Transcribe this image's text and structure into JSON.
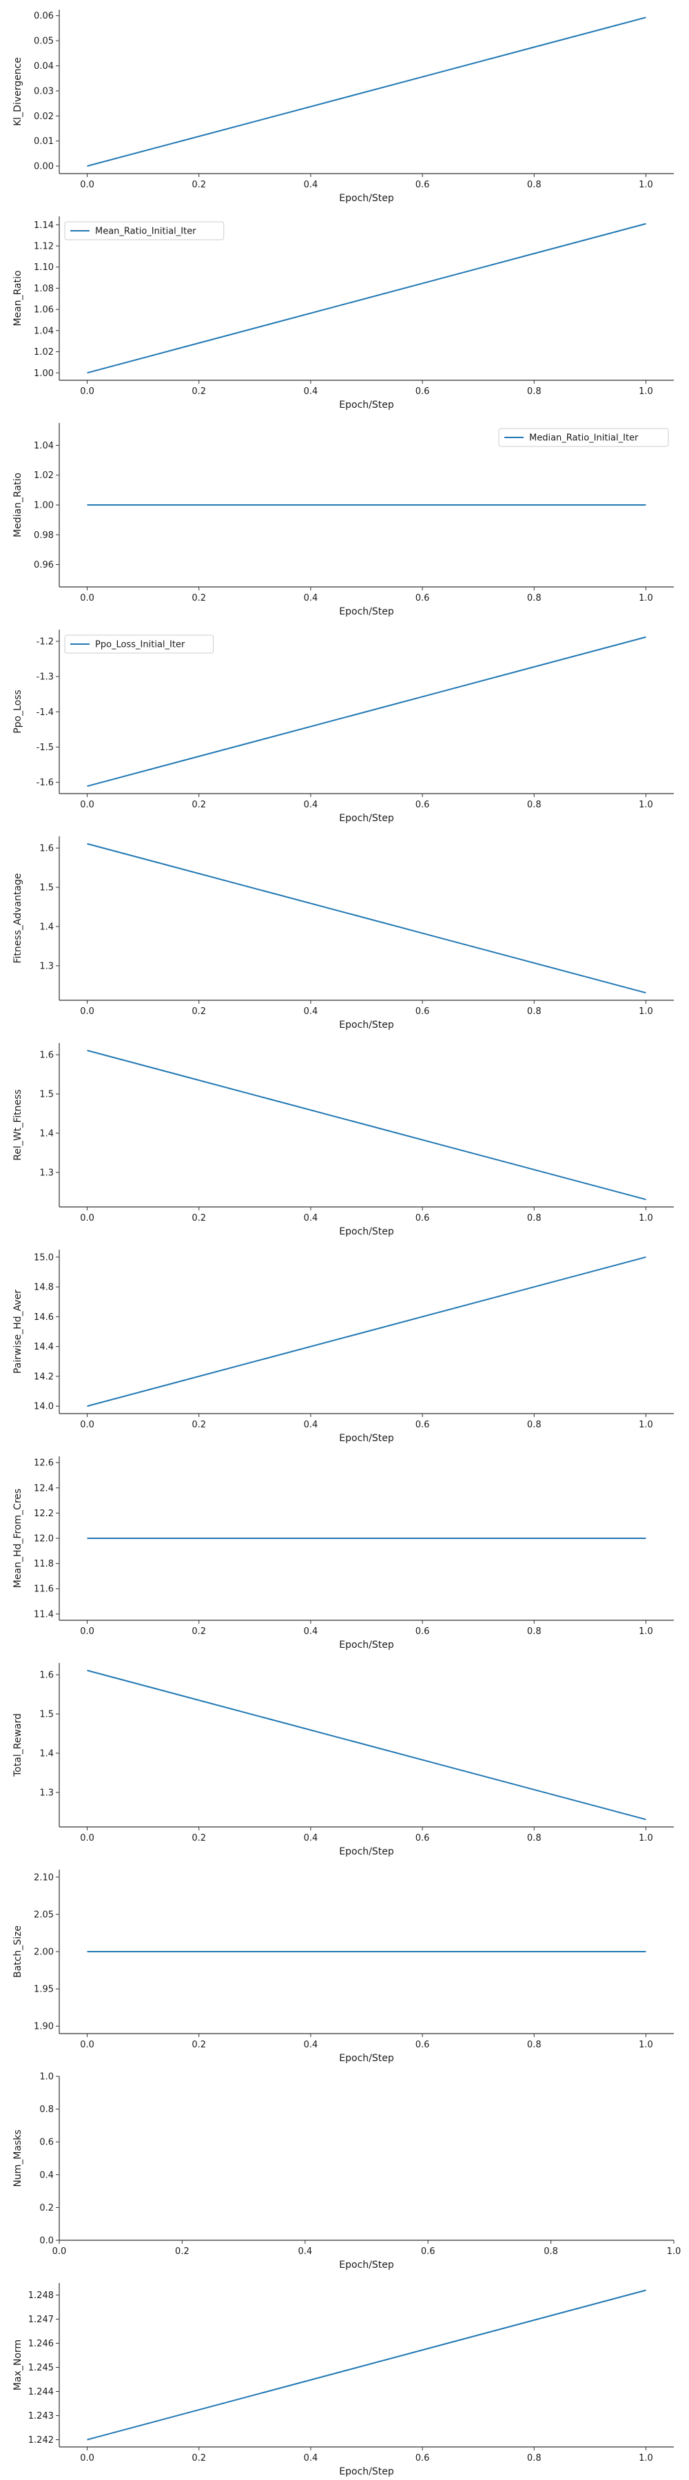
{
  "chart_data": [
    {
      "type": "line",
      "xlabel": "Epoch/Step",
      "ylabel": "Kl_Divergence",
      "x": [
        0,
        1
      ],
      "series": [
        {
          "values": [
            0.0,
            0.0593
          ]
        }
      ],
      "xlim": [
        -0.05,
        1.05
      ],
      "ylim": [
        -0.003,
        0.0624
      ],
      "xticks": [
        "0.0",
        "0.2",
        "0.4",
        "0.6",
        "0.8",
        "1.0"
      ],
      "yticks": [
        "0.00",
        "0.01",
        "0.02",
        "0.03",
        "0.04",
        "0.05",
        "0.06"
      ],
      "legend": null
    },
    {
      "type": "line",
      "xlabel": "Epoch/Step",
      "ylabel": "Mean_Ratio",
      "x": [
        0,
        1
      ],
      "series": [
        {
          "name": "Mean_Ratio_Initial_Iter",
          "values": [
            1.0,
            1.141
          ]
        }
      ],
      "xlim": [
        -0.05,
        1.05
      ],
      "ylim": [
        0.993,
        1.148
      ],
      "xticks": [
        "0.0",
        "0.2",
        "0.4",
        "0.6",
        "0.8",
        "1.0"
      ],
      "yticks": [
        "1.00",
        "1.02",
        "1.04",
        "1.06",
        "1.08",
        "1.10",
        "1.12",
        "1.14"
      ],
      "legend": "upper-left"
    },
    {
      "type": "line",
      "xlabel": "Epoch/Step",
      "ylabel": "Median_Ratio",
      "x": [
        0,
        1
      ],
      "series": [
        {
          "name": "Median_Ratio_Initial_Iter",
          "values": [
            1.0,
            1.0
          ]
        }
      ],
      "xlim": [
        -0.05,
        1.05
      ],
      "ylim": [
        0.945,
        1.055
      ],
      "xticks": [
        "0.0",
        "0.2",
        "0.4",
        "0.6",
        "0.8",
        "1.0"
      ],
      "yticks": [
        "0.96",
        "0.98",
        "1.00",
        "1.02",
        "1.04"
      ],
      "legend": "upper-right"
    },
    {
      "type": "line",
      "xlabel": "Epoch/Step",
      "ylabel": "Ppo_Loss",
      "x": [
        0,
        1
      ],
      "series": [
        {
          "name": "Ppo_Loss_Initial_Iter",
          "values": [
            -1.611,
            -1.188
          ]
        }
      ],
      "xlim": [
        -0.05,
        1.05
      ],
      "ylim": [
        -1.632,
        -1.167
      ],
      "xticks": [
        "0.0",
        "0.2",
        "0.4",
        "0.6",
        "0.8",
        "1.0"
      ],
      "yticks": [
        "-1.6",
        "-1.5",
        "-1.4",
        "-1.3",
        "-1.2"
      ],
      "legend": "upper-left"
    },
    {
      "type": "line",
      "xlabel": "Epoch/Step",
      "ylabel": "Fitness_Advantage",
      "x": [
        0,
        1
      ],
      "series": [
        {
          "values": [
            1.611,
            1.231
          ]
        }
      ],
      "xlim": [
        -0.05,
        1.05
      ],
      "ylim": [
        1.212,
        1.63
      ],
      "xticks": [
        "0.0",
        "0.2",
        "0.4",
        "0.6",
        "0.8",
        "1.0"
      ],
      "yticks": [
        "1.3",
        "1.4",
        "1.5",
        "1.6"
      ],
      "legend": null
    },
    {
      "type": "line",
      "xlabel": "Epoch/Step",
      "ylabel": "Rel_Wt_Fitness",
      "x": [
        0,
        1
      ],
      "series": [
        {
          "values": [
            1.611,
            1.231
          ]
        }
      ],
      "xlim": [
        -0.05,
        1.05
      ],
      "ylim": [
        1.212,
        1.63
      ],
      "xticks": [
        "0.0",
        "0.2",
        "0.4",
        "0.6",
        "0.8",
        "1.0"
      ],
      "yticks": [
        "1.3",
        "1.4",
        "1.5",
        "1.6"
      ],
      "legend": null
    },
    {
      "type": "line",
      "xlabel": "Epoch/Step",
      "ylabel": "Pairwise_Hd_Aver",
      "x": [
        0,
        1
      ],
      "series": [
        {
          "values": [
            14.0,
            15.0
          ]
        }
      ],
      "xlim": [
        -0.05,
        1.05
      ],
      "ylim": [
        13.95,
        15.05
      ],
      "xticks": [
        "0.0",
        "0.2",
        "0.4",
        "0.6",
        "0.8",
        "1.0"
      ],
      "yticks": [
        "14.0",
        "14.2",
        "14.4",
        "14.6",
        "14.8",
        "15.0"
      ],
      "legend": null
    },
    {
      "type": "line",
      "xlabel": "Epoch/Step",
      "ylabel": "Mean_Hd_From_Cres",
      "x": [
        0,
        1
      ],
      "series": [
        {
          "values": [
            12.0,
            12.0
          ]
        }
      ],
      "xlim": [
        -0.05,
        1.05
      ],
      "ylim": [
        11.35,
        12.65
      ],
      "xticks": [
        "0.0",
        "0.2",
        "0.4",
        "0.6",
        "0.8",
        "1.0"
      ],
      "yticks": [
        "11.4",
        "11.6",
        "11.8",
        "12.0",
        "12.2",
        "12.4",
        "12.6"
      ],
      "legend": null
    },
    {
      "type": "line",
      "xlabel": "Epoch/Step",
      "ylabel": "Total_Reward",
      "x": [
        0,
        1
      ],
      "series": [
        {
          "values": [
            1.611,
            1.231
          ]
        }
      ],
      "xlim": [
        -0.05,
        1.05
      ],
      "ylim": [
        1.212,
        1.63
      ],
      "xticks": [
        "0.0",
        "0.2",
        "0.4",
        "0.6",
        "0.8",
        "1.0"
      ],
      "yticks": [
        "1.3",
        "1.4",
        "1.5",
        "1.6"
      ],
      "legend": null
    },
    {
      "type": "line",
      "xlabel": "Epoch/Step",
      "ylabel": "Batch_Size",
      "x": [
        0,
        1
      ],
      "series": [
        {
          "values": [
            2.0,
            2.0
          ]
        }
      ],
      "xlim": [
        -0.05,
        1.05
      ],
      "ylim": [
        1.89,
        2.11
      ],
      "xticks": [
        "0.0",
        "0.2",
        "0.4",
        "0.6",
        "0.8",
        "1.0"
      ],
      "yticks": [
        "1.90",
        "1.95",
        "2.00",
        "2.05",
        "2.10"
      ],
      "legend": null
    },
    {
      "type": "line",
      "xlabel": "Epoch/Step",
      "ylabel": "Num_Masks",
      "x": [],
      "series": [],
      "xlim": [
        0,
        1
      ],
      "ylim": [
        0,
        1
      ],
      "xticks": [
        "0.0",
        "0.2",
        "0.4",
        "0.6",
        "0.8",
        "1.0"
      ],
      "yticks": [
        "0.0",
        "0.2",
        "0.4",
        "0.6",
        "0.8",
        "1.0"
      ],
      "legend": null
    },
    {
      "type": "line",
      "xlabel": "Epoch/Step",
      "ylabel": "Max_Norm",
      "x": [
        0,
        1
      ],
      "series": [
        {
          "values": [
            1.242,
            1.2482
          ]
        }
      ],
      "xlim": [
        -0.05,
        1.05
      ],
      "ylim": [
        1.2417,
        1.2485
      ],
      "xticks": [
        "0.0",
        "0.2",
        "0.4",
        "0.6",
        "0.8",
        "1.0"
      ],
      "yticks": [
        "1.242",
        "1.243",
        "1.244",
        "1.245",
        "1.246",
        "1.247",
        "1.248"
      ],
      "legend": null
    }
  ],
  "colors": {
    "line": "#1f77b4",
    "axis": "#333333",
    "legend_border": "#cccccc"
  }
}
